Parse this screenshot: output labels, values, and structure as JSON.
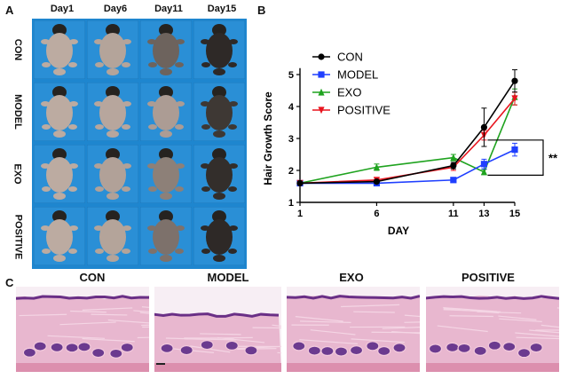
{
  "panel_a": {
    "letter": "A",
    "days": [
      "Day1",
      "Day6",
      "Day11",
      "Day15"
    ],
    "groups": [
      "CON",
      "MODEL",
      "EXO",
      "POSITIVE"
    ],
    "background_color": "#1e86cf",
    "fur_levels": [
      [
        0.05,
        0.1,
        0.55,
        0.95
      ],
      [
        0.05,
        0.08,
        0.15,
        0.85
      ],
      [
        0.05,
        0.12,
        0.35,
        0.92
      ],
      [
        0.05,
        0.1,
        0.45,
        0.95
      ]
    ]
  },
  "panel_b": {
    "letter": "B"
  },
  "chart_data": {
    "type": "line",
    "title": "",
    "xlabel": "DAY",
    "ylabel": "Hair Growth Score",
    "x": [
      1,
      6,
      11,
      13,
      15
    ],
    "xticks": [
      "1",
      "6",
      "11",
      "13",
      "15"
    ],
    "yticks": [
      "1",
      "2",
      "3",
      "4",
      "5"
    ],
    "ylim": [
      1,
      5.2
    ],
    "grid": false,
    "legend_position": "top-left",
    "series": [
      {
        "name": "CON",
        "color": "#000000",
        "marker": "circle",
        "values": [
          1.6,
          1.65,
          2.15,
          3.35,
          4.8
        ],
        "errors": [
          0.03,
          0.05,
          0.1,
          0.6,
          0.35
        ]
      },
      {
        "name": "MODEL",
        "color": "#1f3fff",
        "marker": "square",
        "values": [
          1.6,
          1.6,
          1.7,
          2.2,
          2.65
        ],
        "errors": [
          0.03,
          0.03,
          0.05,
          0.15,
          0.2
        ]
      },
      {
        "name": "EXO",
        "color": "#1fa31f",
        "marker": "triangle-up",
        "values": [
          1.6,
          2.1,
          2.4,
          1.95,
          4.3
        ],
        "errors": [
          0.03,
          0.1,
          0.1,
          0.08,
          0.25
        ]
      },
      {
        "name": "POSITIVE",
        "color": "#e8141e",
        "marker": "triangle-down",
        "values": [
          1.6,
          1.7,
          2.1,
          3.1,
          4.25
        ],
        "errors": [
          0.03,
          0.05,
          0.1,
          0.15,
          0.2
        ]
      }
    ],
    "annotation": "**"
  },
  "panel_c": {
    "letter": "C",
    "titles": [
      "CON",
      "MODEL",
      "EXO",
      "POSITIVE"
    ]
  }
}
